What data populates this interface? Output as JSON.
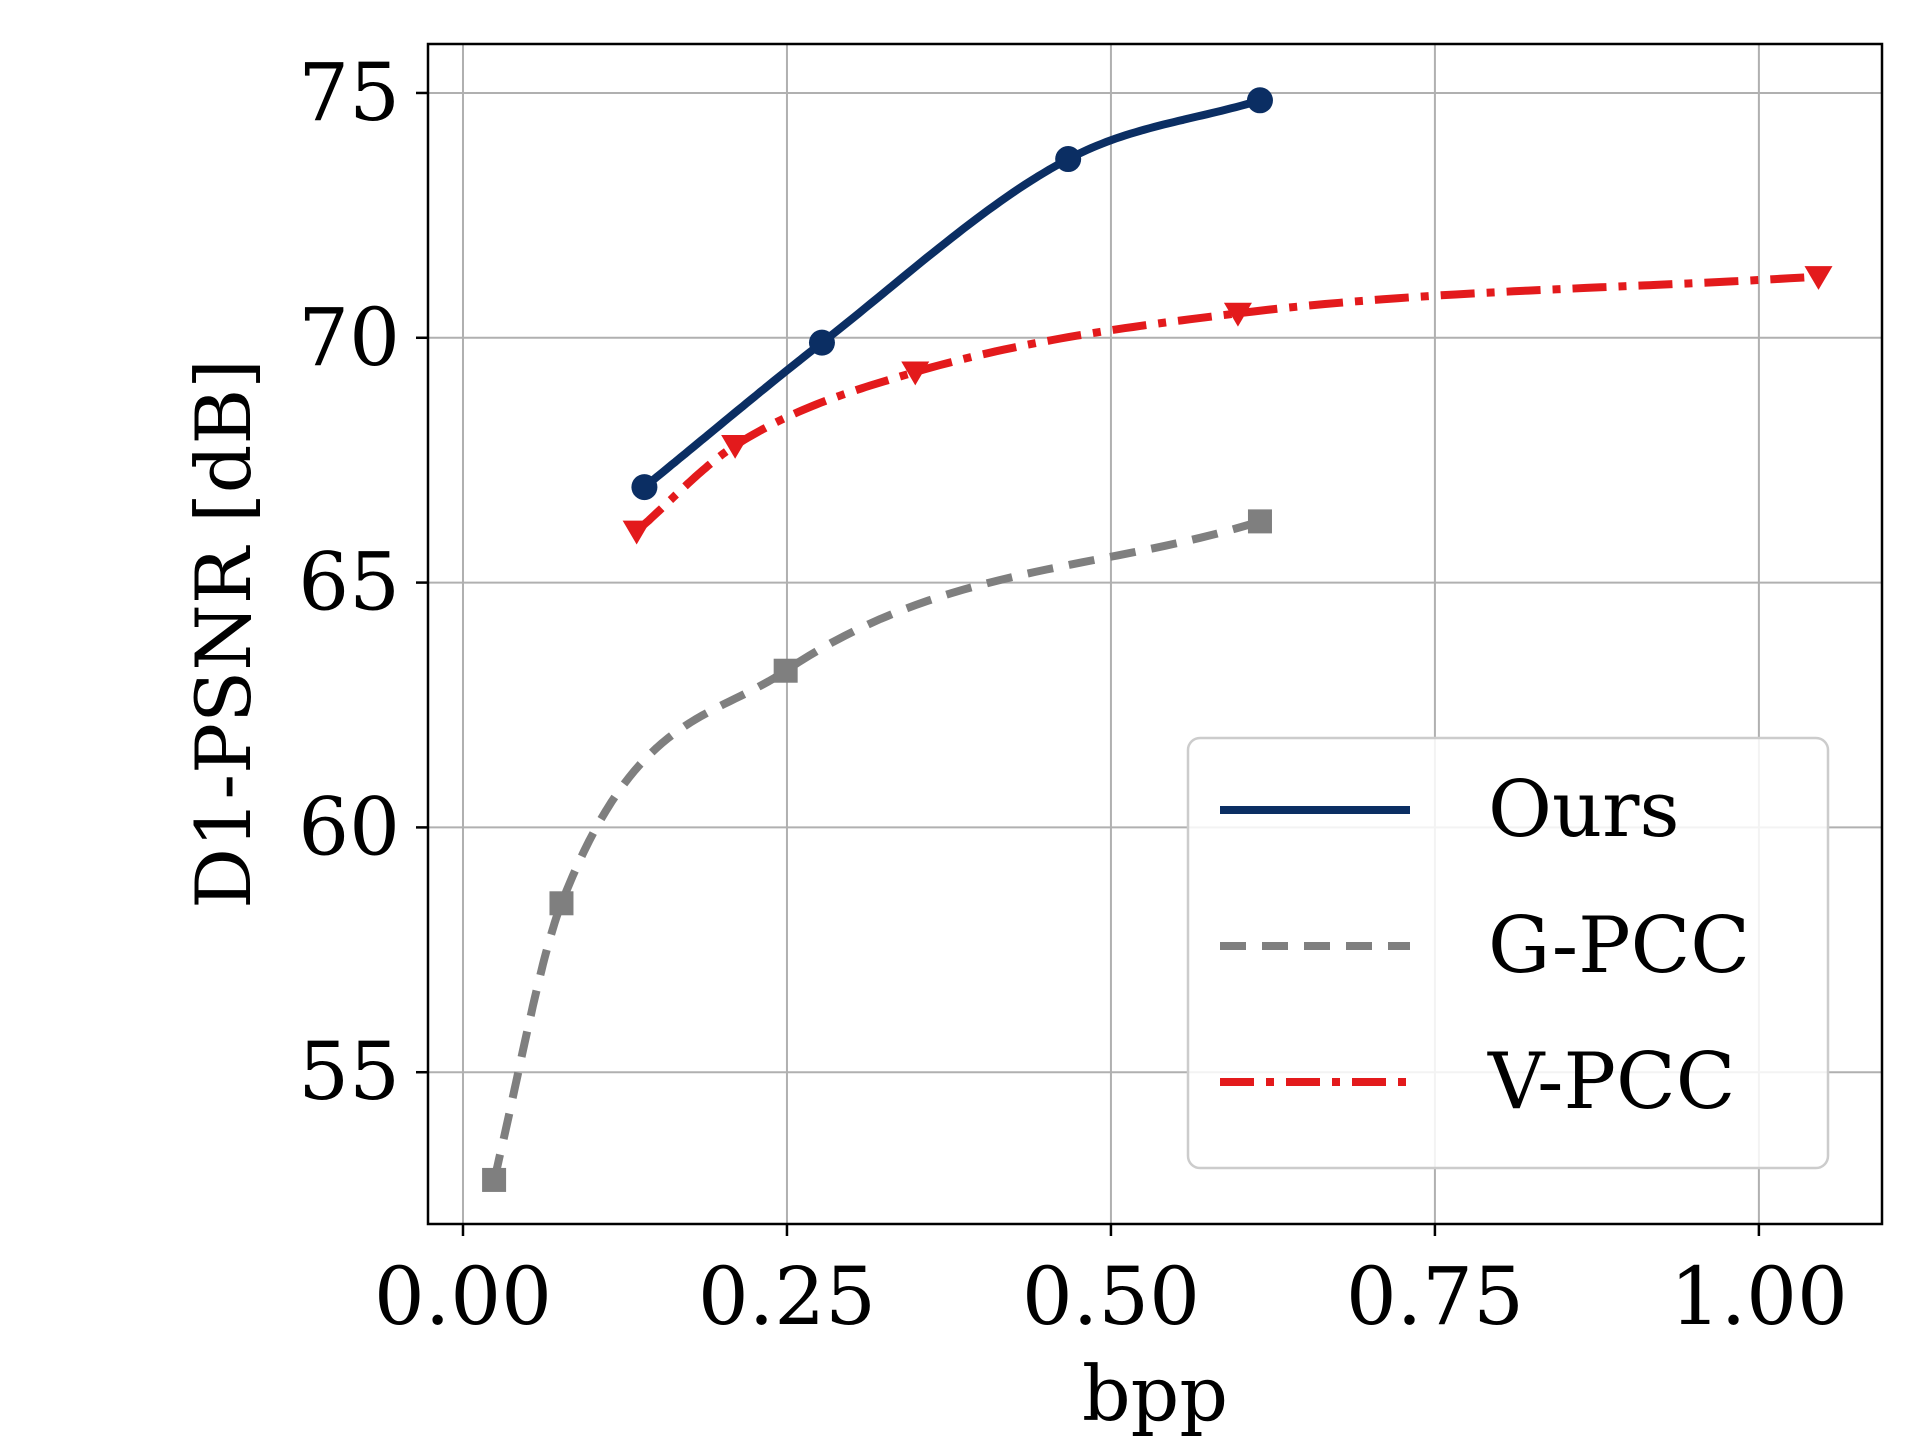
{
  "chart_data": {
    "type": "line",
    "xlabel": "bpp",
    "ylabel": "D1-PSNR [dB]",
    "xlim": [
      -0.027,
      1.095
    ],
    "ylim": [
      51.9,
      76.0
    ],
    "xticks": [
      0.0,
      0.25,
      0.5,
      0.75,
      1.0
    ],
    "xtick_labels": [
      "0.00",
      "0.25",
      "0.50",
      "0.75",
      "1.00"
    ],
    "yticks": [
      55,
      60,
      65,
      70,
      75
    ],
    "ytick_labels": [
      "55",
      "60",
      "65",
      "70",
      "75"
    ],
    "grid": true,
    "legend_position": "lower-right",
    "series": [
      {
        "name": "Ours",
        "color": "#0b2e63",
        "linestyle": "solid",
        "marker": "circle",
        "x": [
          0.14,
          0.277,
          0.467,
          0.615
        ],
        "y": [
          66.95,
          69.9,
          73.65,
          74.85
        ]
      },
      {
        "name": "G-PCC",
        "color": "#7f7f7f",
        "linestyle": "dashed",
        "marker": "square",
        "x": [
          0.024,
          0.076,
          0.249,
          0.615
        ],
        "y": [
          52.8,
          58.45,
          63.2,
          66.25
        ]
      },
      {
        "name": "V-PCC",
        "color": "#e31a1c",
        "linestyle": "dashdot",
        "marker": "triangle-down",
        "x": [
          0.134,
          0.21,
          0.349,
          0.598,
          1.046
        ],
        "y": [
          66.05,
          67.8,
          69.3,
          70.5,
          71.25
        ]
      }
    ]
  }
}
